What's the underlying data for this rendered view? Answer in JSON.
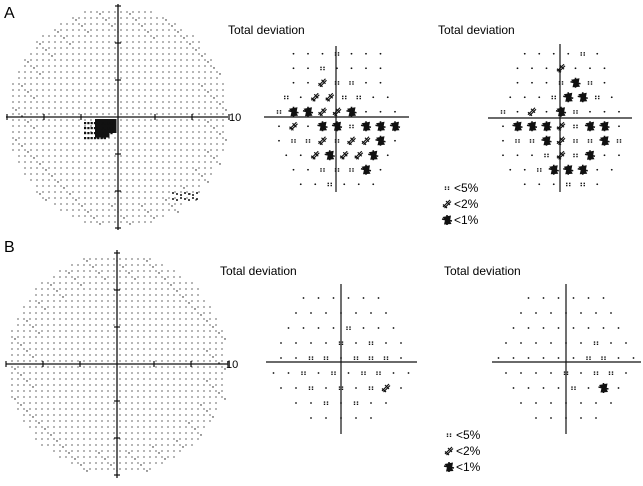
{
  "panels": [
    {
      "id": "A",
      "label": "A",
      "field_scale_label": "10",
      "left_plot_title": "Total deviation",
      "right_plot_title": "Total deviation",
      "scotoma": {
        "solid_cells": 22,
        "dense_points": 34,
        "temporal_cluster": 14
      },
      "left_plot": {
        "rows": [
          [
            "",
            "",
            "",
            "o",
            "",
            "",
            ""
          ],
          [
            "",
            "",
            "o",
            "",
            "",
            "",
            ""
          ],
          [
            "",
            "",
            "p",
            "o",
            "o",
            "",
            ""
          ],
          [
            "o",
            "",
            "p",
            "p",
            "o",
            "o",
            "",
            ""
          ],
          [
            "o",
            "s",
            "s",
            "p",
            "p",
            "s",
            "",
            "",
            ""
          ],
          [
            "",
            "p",
            "",
            "s",
            "s",
            "o",
            "s",
            "s",
            "s"
          ],
          [
            "",
            "o",
            "o",
            "p",
            "o",
            "p",
            "p",
            "s",
            ""
          ],
          [
            "",
            "",
            "p",
            "s",
            "p",
            "p",
            "s",
            ""
          ],
          [
            "",
            "",
            "o",
            "o",
            "o",
            "s",
            ""
          ],
          [
            "",
            "",
            "o",
            "",
            "",
            ""
          ]
        ]
      },
      "right_plot": {
        "rows": [
          [
            "",
            "",
            "",
            "",
            "o",
            ""
          ],
          [
            "",
            "",
            "",
            "p",
            "",
            "",
            ""
          ],
          [
            "",
            "",
            "",
            "o",
            "s",
            "o",
            ""
          ],
          [
            "",
            "",
            "",
            "o",
            "s",
            "s",
            "o",
            ""
          ],
          [
            "o",
            "",
            "p",
            "",
            "s",
            "o",
            "",
            "",
            ""
          ],
          [
            "",
            "s",
            "s",
            "s",
            "p",
            "o",
            "s",
            "s",
            ""
          ],
          [
            "",
            "o",
            "o",
            "s",
            "p",
            "o",
            "o",
            "s",
            "o"
          ],
          [
            "",
            "",
            "",
            "o",
            "p",
            "o",
            "s",
            "",
            ""
          ],
          [
            "",
            "",
            "o",
            "s",
            "s",
            "s",
            "",
            ""
          ],
          [
            "",
            "",
            "",
            "o",
            "o",
            ""
          ]
        ]
      },
      "legend": [
        {
          "symbol": "o",
          "label": "<5%"
        },
        {
          "symbol": "p",
          "label": "<2%"
        },
        {
          "symbol": "s",
          "label": "<1%"
        }
      ]
    },
    {
      "id": "B",
      "label": "B",
      "field_scale_label": "10",
      "left_plot_title": "Total deviation",
      "right_plot_title": "Total deviation",
      "scotoma": {
        "solid_cells": 0,
        "dense_points": 0,
        "temporal_cluster": 0
      },
      "left_plot": {
        "rows": [
          [
            "",
            "",
            "",
            "",
            "",
            ""
          ],
          [
            "",
            "",
            "",
            "",
            "",
            "",
            ""
          ],
          [
            "",
            "",
            "",
            "",
            "o",
            "",
            "",
            ""
          ],
          [
            "",
            "",
            "",
            "",
            "o",
            "",
            "o",
            "",
            ""
          ],
          [
            "",
            "",
            "o",
            "o",
            "",
            "o",
            "o",
            "o",
            ""
          ],
          [
            "",
            "",
            "o",
            "",
            "o",
            "",
            "o",
            "o",
            "",
            ""
          ],
          [
            "",
            "",
            "o",
            "",
            "o",
            "",
            "o",
            "p",
            ""
          ],
          [
            "",
            "",
            "o",
            "",
            "o",
            "",
            ""
          ],
          [
            "",
            "",
            "",
            "",
            ""
          ]
        ]
      },
      "right_plot": {
        "rows": [
          [
            "",
            "",
            "",
            "",
            "",
            ""
          ],
          [
            "",
            "",
            "",
            "",
            "",
            "",
            ""
          ],
          [
            "",
            "",
            "",
            "",
            "",
            "",
            "",
            ""
          ],
          [
            "",
            "",
            "",
            "",
            "",
            "",
            "o",
            "",
            ""
          ],
          [
            "",
            "",
            "",
            "",
            "",
            "",
            "o",
            "o",
            "",
            ""
          ],
          [
            "",
            "",
            "",
            "",
            "o",
            "",
            "o",
            "o",
            ""
          ],
          [
            "",
            "",
            "",
            "",
            "o",
            "",
            "s",
            ""
          ],
          [
            "",
            "",
            "",
            "",
            "",
            "",
            ""
          ],
          [
            "",
            "",
            "",
            "",
            ""
          ]
        ]
      },
      "legend": [
        {
          "symbol": "o",
          "label": "<5%"
        },
        {
          "symbol": "p",
          "label": "<2%"
        },
        {
          "symbol": "s",
          "label": "<1%"
        }
      ]
    }
  ]
}
